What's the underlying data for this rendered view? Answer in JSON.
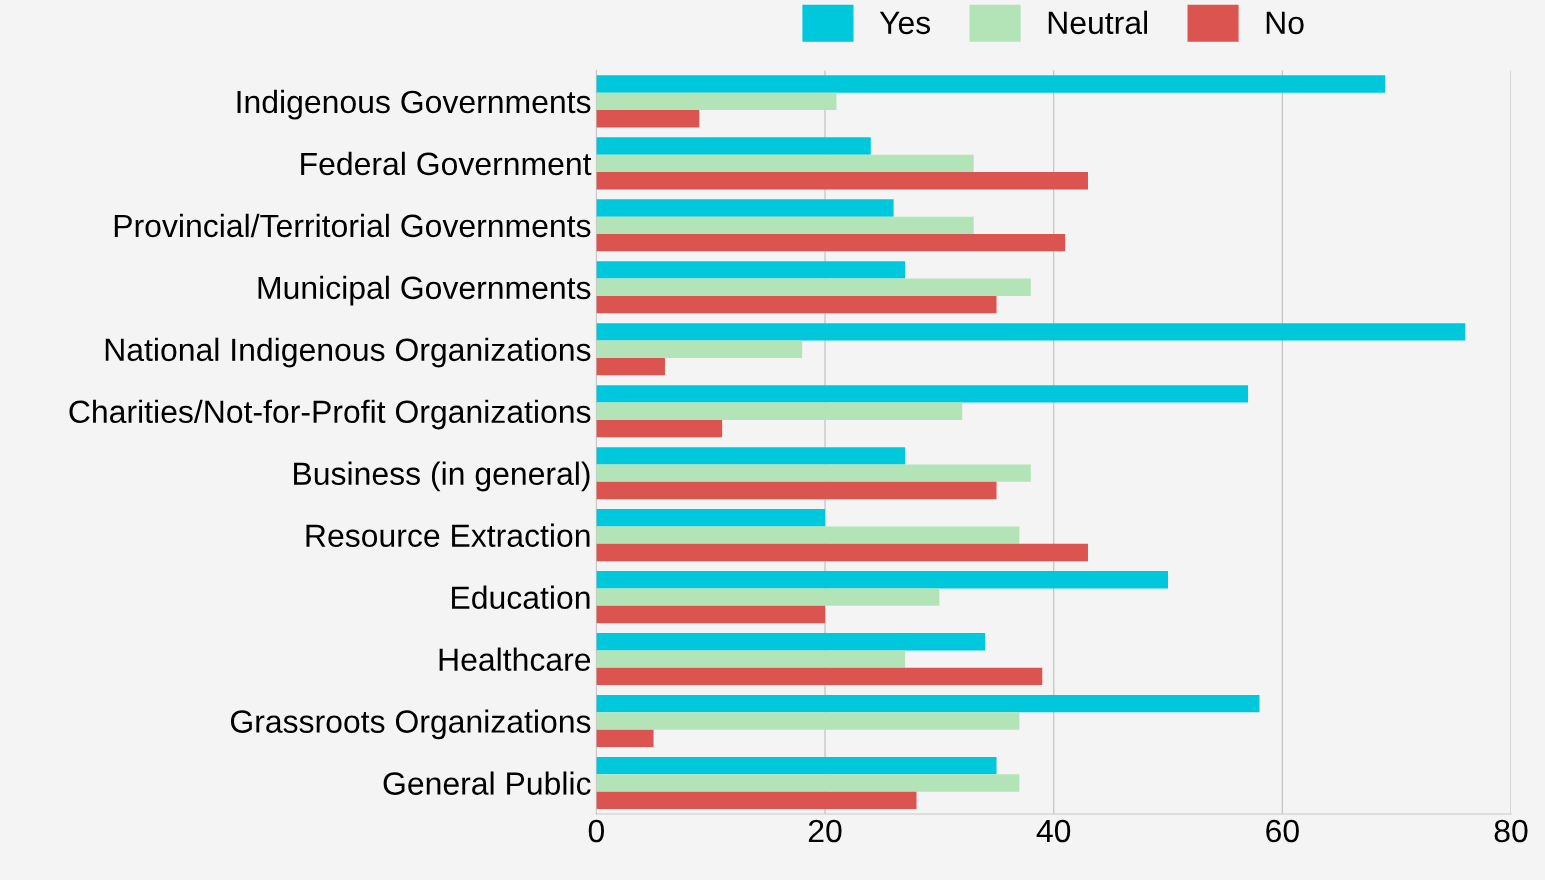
{
  "chart_data": {
    "type": "bar",
    "orientation": "horizontal",
    "categories": [
      "Indigenous Governments",
      "Federal Government",
      "Provincial/Territorial Governments",
      "Municipal Governments",
      "National Indigenous Organizations",
      "Charities/Not-for-Profit Organizations",
      "Business (in general)",
      "Resource Extraction",
      "Education",
      "Healthcare",
      "Grassroots Organizations",
      "General Public"
    ],
    "series": [
      {
        "name": "Yes",
        "color": "#00c8dc",
        "values": [
          69,
          24,
          26,
          27,
          76,
          57,
          27,
          20,
          50,
          34,
          58,
          35
        ]
      },
      {
        "name": "Neutral",
        "color": "#b2e4b8",
        "values": [
          21,
          33,
          33,
          38,
          18,
          32,
          38,
          37,
          30,
          27,
          37,
          37
        ]
      },
      {
        "name": "No",
        "color": "#dc5450",
        "values": [
          9,
          43,
          41,
          35,
          6,
          11,
          35,
          43,
          20,
          39,
          5,
          28
        ]
      }
    ],
    "xlim": [
      0,
      80
    ],
    "xticks": [
      0,
      20,
      40,
      60,
      80
    ],
    "grid": "x",
    "legend": "top"
  }
}
